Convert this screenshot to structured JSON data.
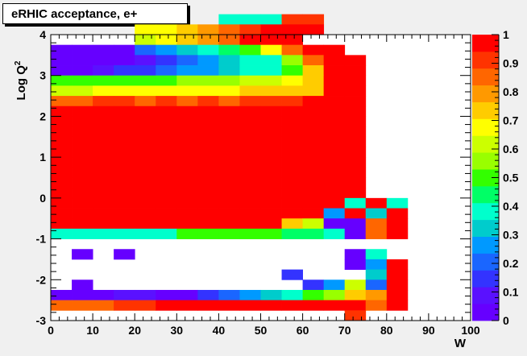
{
  "chart_data": {
    "type": "heatmap",
    "title": "eRHIC acceptance, e+",
    "xlabel": "W",
    "ylabel": "Log Q",
    "ylabel_superscript": "2",
    "x_range": [
      0,
      100
    ],
    "y_range": [
      -3,
      4
    ],
    "x_ticks": [
      "0",
      "10",
      "20",
      "30",
      "40",
      "50",
      "60",
      "70",
      "80",
      "90",
      "100"
    ],
    "y_ticks": [
      "-3",
      "-2",
      "-1",
      "0",
      "1",
      "2",
      "3",
      "4"
    ],
    "z_range": [
      0,
      1
    ],
    "z_ticks": [
      "0",
      "0.1",
      "0.2",
      "0.3",
      "0.4",
      "0.5",
      "0.6",
      "0.7",
      "0.8",
      "0.9",
      "1"
    ],
    "bins": {
      "x_start": 0,
      "x_width": 5,
      "y_start": -3,
      "y_width": 0.25
    },
    "palette": [
      "#6600ff",
      "#5a11ff",
      "#3333ff",
      "#1a66ff",
      "#0099ff",
      "#00cccc",
      "#00ffcc",
      "#00ff66",
      "#33ff00",
      "#99ff00",
      "#ccff00",
      "#ffff00",
      "#ffcc00",
      "#ff9900",
      "#ff6600",
      "#ff3300",
      "#ff0000"
    ],
    "z_values": [
      "........JJJXX...........",
      "....RRSUVXYYY...........",
      "....PRTUWYZY............",
      "BBBBFHIJLNRVZY..........",
      "BBBBCDFHIJKOVYY.........",
      "ABCDEFGHIJKNTYY.........",
      "NNNNNNOOOPQRTYY.........",
      "QQRRRRRRRSSSTYY.........",
      "WWXXWXWXWXXXYYY.........",
      "YYYYYYYYYYYYYYY.........",
      "ZYZYYZZYYZZZYYY.........",
      "YYYYYYYYYYYYYYY.........",
      "YYYYZYYZYZYYYYY.........",
      "YYYYYYYYYYYYYYY.........",
      "YZYZYYYYYYZYYYY.........",
      "YYYYYYYYYYYYYYY.........",
      "YYYYYYYYYYYYYYY.........",
      "YYYYYYYYYYYYYYZ.........",
      "YYYYYYYYYYYYYYKYK.......",
      "YYYYYYYYYYYYYHYIY.......",
      "YYYYYYYYZYZTQBBWY.......",
      "JKKKKKNNNMMLLJBWY.......",
      "........................",
      ".A.A..........AK........",
      "..............AHY.......",
      "...........E...IY.......",
      ".A..........EHPFY.......",
      "AAACCAAEFGIKMOSUY.......",
      "WWWXXYYYYYYYYYYWY.......",
      "..............X........."
    ]
  }
}
